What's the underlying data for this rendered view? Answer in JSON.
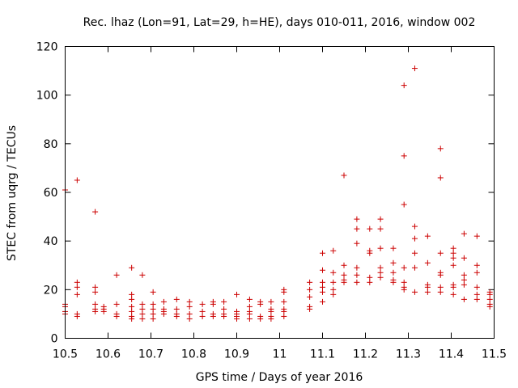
{
  "chart_data": {
    "type": "scatter",
    "title": "Rec. lhaz (Lon=91, Lat=29, h=HE), days 010-011, 2016, window 002",
    "xlabel": "GPS time / Days of year 2016",
    "ylabel": "STEC from uqrg / TECUs",
    "xlim": [
      10.5,
      11.5
    ],
    "ylim": [
      0,
      120
    ],
    "xticks": [
      "10.5",
      "10.6",
      "10.7",
      "10.8",
      "10.9",
      "11",
      "11.1",
      "11.2",
      "11.3",
      "11.4",
      "11.5"
    ],
    "yticks": [
      "0",
      "20",
      "40",
      "60",
      "80",
      "100",
      "120"
    ],
    "grid": false,
    "legend": false,
    "marker": "plus",
    "color": "#cc0000",
    "series": [
      {
        "points": [
          [
            10.5,
            61
          ],
          [
            10.5,
            14
          ],
          [
            10.5,
            13
          ],
          [
            10.5,
            11
          ],
          [
            10.5,
            10
          ],
          [
            10.528,
            65
          ],
          [
            10.528,
            23
          ],
          [
            10.528,
            21
          ],
          [
            10.528,
            18
          ],
          [
            10.528,
            10
          ],
          [
            10.528,
            9
          ],
          [
            10.57,
            52
          ],
          [
            10.57,
            21
          ],
          [
            10.57,
            19
          ],
          [
            10.57,
            14
          ],
          [
            10.57,
            12
          ],
          [
            10.57,
            11
          ],
          [
            10.59,
            13
          ],
          [
            10.59,
            12
          ],
          [
            10.59,
            11
          ],
          [
            10.62,
            26
          ],
          [
            10.62,
            14
          ],
          [
            10.62,
            10
          ],
          [
            10.62,
            9
          ],
          [
            10.655,
            29
          ],
          [
            10.655,
            18
          ],
          [
            10.655,
            16
          ],
          [
            10.655,
            13
          ],
          [
            10.655,
            11
          ],
          [
            10.655,
            9
          ],
          [
            10.655,
            8
          ],
          [
            10.68,
            26
          ],
          [
            10.68,
            14
          ],
          [
            10.68,
            12
          ],
          [
            10.68,
            10
          ],
          [
            10.68,
            8
          ],
          [
            10.705,
            19
          ],
          [
            10.705,
            14
          ],
          [
            10.705,
            12
          ],
          [
            10.705,
            10
          ],
          [
            10.705,
            8
          ],
          [
            10.73,
            15
          ],
          [
            10.73,
            12
          ],
          [
            10.73,
            11
          ],
          [
            10.73,
            10
          ],
          [
            10.76,
            16
          ],
          [
            10.76,
            12
          ],
          [
            10.76,
            10
          ],
          [
            10.76,
            9
          ],
          [
            10.79,
            15
          ],
          [
            10.79,
            13
          ],
          [
            10.79,
            10
          ],
          [
            10.79,
            8
          ],
          [
            10.82,
            14
          ],
          [
            10.82,
            11
          ],
          [
            10.82,
            9
          ],
          [
            10.845,
            15
          ],
          [
            10.845,
            14
          ],
          [
            10.845,
            10
          ],
          [
            10.845,
            9
          ],
          [
            10.87,
            15
          ],
          [
            10.87,
            12
          ],
          [
            10.87,
            10
          ],
          [
            10.87,
            9
          ],
          [
            10.9,
            18
          ],
          [
            10.9,
            11
          ],
          [
            10.9,
            10
          ],
          [
            10.9,
            9
          ],
          [
            10.9,
            8
          ],
          [
            10.93,
            16
          ],
          [
            10.93,
            13
          ],
          [
            10.93,
            11
          ],
          [
            10.93,
            10
          ],
          [
            10.93,
            8
          ],
          [
            10.955,
            15
          ],
          [
            10.955,
            14
          ],
          [
            10.955,
            9
          ],
          [
            10.955,
            8
          ],
          [
            10.98,
            15
          ],
          [
            10.98,
            12
          ],
          [
            10.98,
            11
          ],
          [
            10.98,
            9
          ],
          [
            10.98,
            8
          ],
          [
            11.01,
            20
          ],
          [
            11.01,
            19
          ],
          [
            11.01,
            15
          ],
          [
            11.01,
            12
          ],
          [
            11.01,
            11
          ],
          [
            11.01,
            9
          ],
          [
            11.07,
            23
          ],
          [
            11.07,
            20
          ],
          [
            11.07,
            17
          ],
          [
            11.07,
            13
          ],
          [
            11.07,
            12
          ],
          [
            11.1,
            35
          ],
          [
            11.1,
            28
          ],
          [
            11.1,
            23
          ],
          [
            11.1,
            21
          ],
          [
            11.1,
            19
          ],
          [
            11.1,
            15
          ],
          [
            11.125,
            36
          ],
          [
            11.125,
            27
          ],
          [
            11.125,
            23
          ],
          [
            11.125,
            20
          ],
          [
            11.125,
            18
          ],
          [
            11.15,
            67
          ],
          [
            11.15,
            30
          ],
          [
            11.15,
            26
          ],
          [
            11.15,
            24
          ],
          [
            11.15,
            23
          ],
          [
            11.18,
            49
          ],
          [
            11.18,
            45
          ],
          [
            11.18,
            39
          ],
          [
            11.18,
            29
          ],
          [
            11.18,
            26
          ],
          [
            11.18,
            23
          ],
          [
            11.21,
            45
          ],
          [
            11.21,
            36
          ],
          [
            11.21,
            35
          ],
          [
            11.21,
            25
          ],
          [
            11.21,
            23
          ],
          [
            11.235,
            49
          ],
          [
            11.235,
            45
          ],
          [
            11.235,
            37
          ],
          [
            11.235,
            29
          ],
          [
            11.235,
            27
          ],
          [
            11.235,
            25
          ],
          [
            11.265,
            37
          ],
          [
            11.265,
            31
          ],
          [
            11.265,
            27
          ],
          [
            11.265,
            24
          ],
          [
            11.265,
            23
          ],
          [
            11.29,
            104
          ],
          [
            11.29,
            75
          ],
          [
            11.29,
            55
          ],
          [
            11.29,
            29
          ],
          [
            11.29,
            23
          ],
          [
            11.29,
            21
          ],
          [
            11.29,
            20
          ],
          [
            11.315,
            111
          ],
          [
            11.315,
            46
          ],
          [
            11.315,
            41
          ],
          [
            11.315,
            35
          ],
          [
            11.315,
            29
          ],
          [
            11.315,
            19
          ],
          [
            11.345,
            42
          ],
          [
            11.345,
            31
          ],
          [
            11.345,
            22
          ],
          [
            11.345,
            21
          ],
          [
            11.345,
            19
          ],
          [
            11.375,
            78
          ],
          [
            11.375,
            66
          ],
          [
            11.375,
            35
          ],
          [
            11.375,
            27
          ],
          [
            11.375,
            26
          ],
          [
            11.375,
            21
          ],
          [
            11.375,
            19
          ],
          [
            11.405,
            37
          ],
          [
            11.405,
            35
          ],
          [
            11.405,
            33
          ],
          [
            11.405,
            30
          ],
          [
            11.405,
            22
          ],
          [
            11.405,
            21
          ],
          [
            11.405,
            18
          ],
          [
            11.43,
            43
          ],
          [
            11.43,
            33
          ],
          [
            11.43,
            26
          ],
          [
            11.43,
            24
          ],
          [
            11.43,
            22
          ],
          [
            11.43,
            16
          ],
          [
            11.46,
            42
          ],
          [
            11.46,
            30
          ],
          [
            11.46,
            27
          ],
          [
            11.46,
            21
          ],
          [
            11.46,
            18
          ],
          [
            11.46,
            16
          ],
          [
            11.49,
            19
          ],
          [
            11.49,
            18
          ],
          [
            11.49,
            16
          ],
          [
            11.49,
            14
          ],
          [
            11.49,
            13
          ]
        ]
      }
    ]
  }
}
